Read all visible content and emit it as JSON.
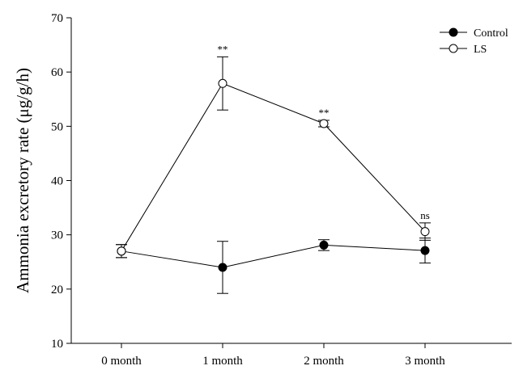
{
  "chart_data": {
    "type": "line",
    "title": "",
    "xlabel": "",
    "ylabel": "Ammonia excretory rate (μg/g/h)",
    "ylim": [
      10,
      70
    ],
    "yticks": [
      10,
      20,
      30,
      40,
      50,
      60,
      70
    ],
    "categories": [
      "0 month",
      "1 month",
      "2 month",
      "3 month"
    ],
    "series": [
      {
        "name": "Control",
        "marker": "filled-circle",
        "color": "#000000",
        "values": [
          27.0,
          24.0,
          28.1,
          27.1
        ],
        "errors": [
          1.2,
          4.8,
          1.0,
          2.3
        ]
      },
      {
        "name": "LS",
        "marker": "open-circle",
        "color": "#000000",
        "values": [
          27.0,
          57.9,
          50.5,
          30.6
        ],
        "errors": [
          1.2,
          4.9,
          0.6,
          1.6
        ]
      }
    ],
    "annotations": [
      {
        "category": "1 month",
        "text": "**"
      },
      {
        "category": "2 month",
        "text": "**"
      },
      {
        "category": "3 month",
        "text": "ns"
      }
    ],
    "grid": false,
    "legend": "top-right"
  }
}
